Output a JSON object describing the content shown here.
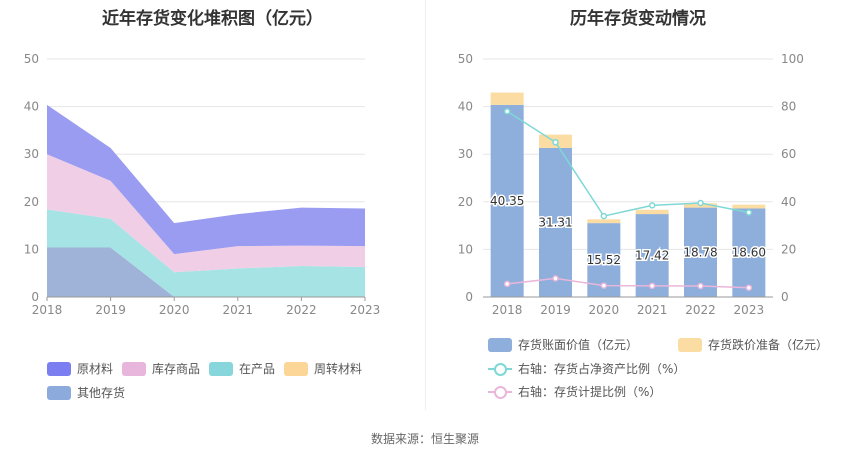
{
  "chart_data": [
    {
      "type": "area",
      "stacked": true,
      "title": "近年存货变化堆积图（亿元）",
      "x": [
        "2018",
        "2019",
        "2020",
        "2021",
        "2022",
        "2023"
      ],
      "ylim": [
        0,
        50
      ],
      "yticks": [
        0,
        10,
        20,
        30,
        40,
        50
      ],
      "grid": true,
      "legend_position": "bottom",
      "series": [
        {
          "name": "其他存货",
          "color": "#9fb3d9",
          "values": [
            10.4,
            10.4,
            0,
            0,
            0,
            0
          ]
        },
        {
          "name": "在产品",
          "color": "#a6e3e4",
          "values": [
            8.0,
            6.0,
            5.2,
            6.0,
            6.5,
            6.3
          ]
        },
        {
          "name": "周转材料",
          "color": "#fbdca3",
          "values": [
            0,
            0,
            0,
            0,
            0,
            0
          ]
        },
        {
          "name": "库存商品",
          "color": "#f0cfe6",
          "values": [
            11.6,
            8.0,
            3.8,
            4.7,
            4.3,
            4.4
          ]
        },
        {
          "name": "原材料",
          "color": "#9a9cf2",
          "values": [
            10.35,
            6.9,
            6.52,
            6.72,
            7.98,
            7.9
          ]
        }
      ],
      "legend": [
        {
          "name": "原材料",
          "color": "#7b7ef0"
        },
        {
          "name": "库存商品",
          "color": "#e8b6dc"
        },
        {
          "name": "在产品",
          "color": "#86d6db"
        },
        {
          "name": "周转材料",
          "color": "#fbd696"
        },
        {
          "name": "其他存货",
          "color": "#8caadb"
        }
      ]
    },
    {
      "type": "bar",
      "title": "历年存货变动情况",
      "categories": [
        "2018",
        "2019",
        "2020",
        "2021",
        "2022",
        "2023"
      ],
      "ylim": [
        0,
        50
      ],
      "yticks": [
        0,
        10,
        20,
        30,
        40,
        50
      ],
      "y2lim": [
        0,
        100
      ],
      "y2ticks": [
        0,
        20,
        40,
        60,
        80,
        100
      ],
      "grid": true,
      "legend_position": "bottom",
      "bar_series": [
        {
          "name": "存货账面价值（亿元）",
          "color": "#8eaedc",
          "values": [
            40.35,
            31.31,
            15.52,
            17.42,
            18.78,
            18.6
          ],
          "labels": [
            "40.35",
            "31.31",
            "15.52",
            "17.42",
            "18.78",
            "18.60"
          ]
        },
        {
          "name": "存货跌价准备（亿元）",
          "color": "#fbdca3",
          "values": [
            2.6,
            2.8,
            0.8,
            0.9,
            0.9,
            0.8
          ]
        }
      ],
      "line_series": [
        {
          "name": "右轴：存货占净资产比例（%）",
          "color": "#7fd8d6",
          "values": [
            78,
            65,
            34,
            38.5,
            39.5,
            35.5
          ]
        },
        {
          "name": "右轴：存货计提比例（%）",
          "color": "#eab6da",
          "values": [
            5.5,
            7.8,
            4.8,
            4.7,
            4.6,
            3.9
          ]
        }
      ]
    }
  ],
  "source": "数据来源：恒生聚源"
}
